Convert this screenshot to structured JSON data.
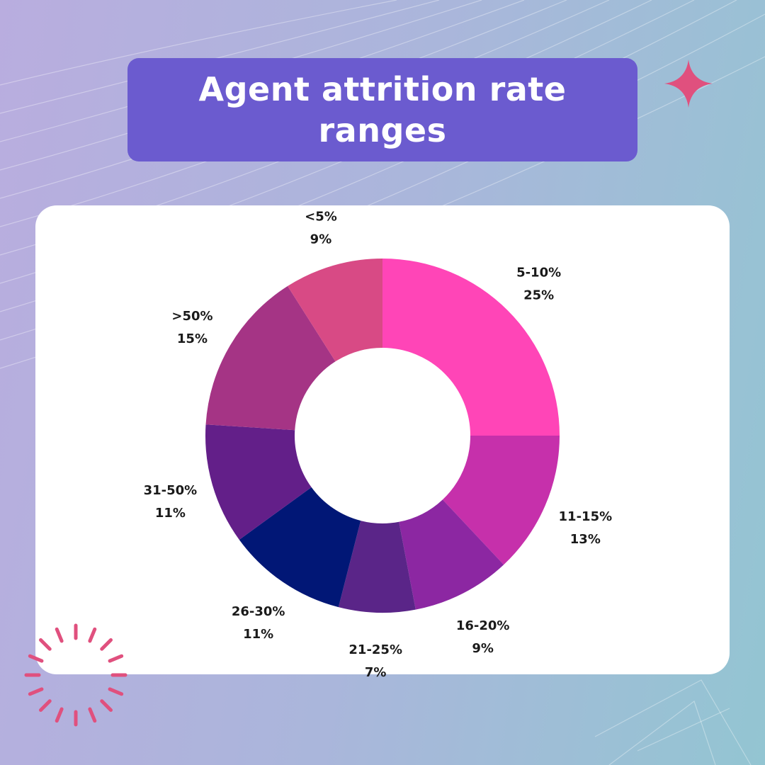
{
  "title": "Agent attrition rate ranges",
  "colors": {
    "title_box": "#6b5bcf",
    "sparkle": "#e0507e",
    "burst": "#e0507e"
  },
  "chart_data": {
    "type": "pie",
    "donut": true,
    "slices": [
      {
        "label": "5-10%",
        "value": 25,
        "value_label": "25%",
        "color": "#ff45b7"
      },
      {
        "label": "11-15%",
        "value": 13,
        "value_label": "13%",
        "color": "#c630ab"
      },
      {
        "label": "16-20%",
        "value": 9,
        "value_label": "9%",
        "color": "#8c27a2"
      },
      {
        "label": "21-25%",
        "value": 7,
        "value_label": "7%",
        "color": "#5a2588"
      },
      {
        "label": "26-30%",
        "value": 11,
        "value_label": "11%",
        "color": "#011776"
      },
      {
        "label": "31-50%",
        "value": 11,
        "value_label": "11%",
        "color": "#631f89"
      },
      {
        "label": ">50%",
        "value": 15,
        "value_label": "15%",
        "color": "#a53485"
      },
      {
        "label": "<5%",
        "value": 9,
        "value_label": "9%",
        "color": "#d84a85"
      }
    ]
  }
}
